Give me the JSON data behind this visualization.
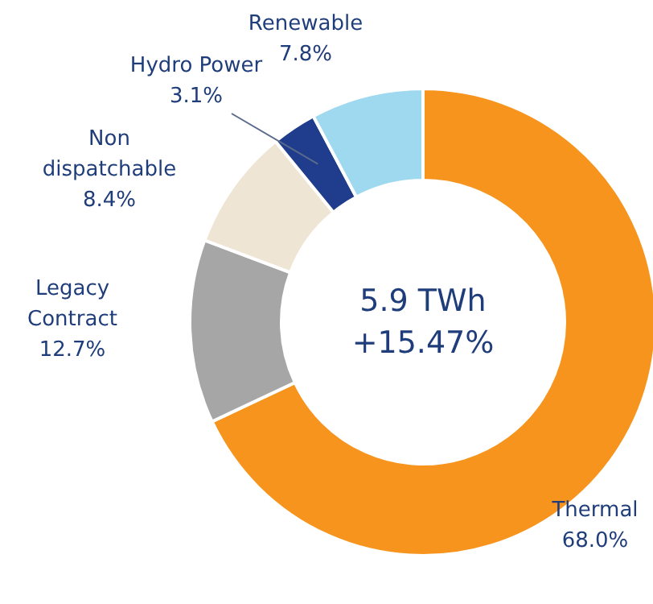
{
  "chart_data": {
    "type": "donut",
    "categories": [
      "Thermal",
      "Legacy Contract",
      "Non dispatchable",
      "Hydro Power",
      "Renewable"
    ],
    "values": [
      68.0,
      12.7,
      8.4,
      3.1,
      7.8
    ],
    "value_labels": [
      "68.0%",
      "12.7%",
      "8.4%",
      "3.1%",
      "7.8%"
    ],
    "colors": [
      "#f7941d",
      "#a6a6a6",
      "#efe5d5",
      "#1f3d8c",
      "#9ed9f0"
    ],
    "annotations": [
      "5.9 TWh",
      "+15.47%"
    ]
  }
}
